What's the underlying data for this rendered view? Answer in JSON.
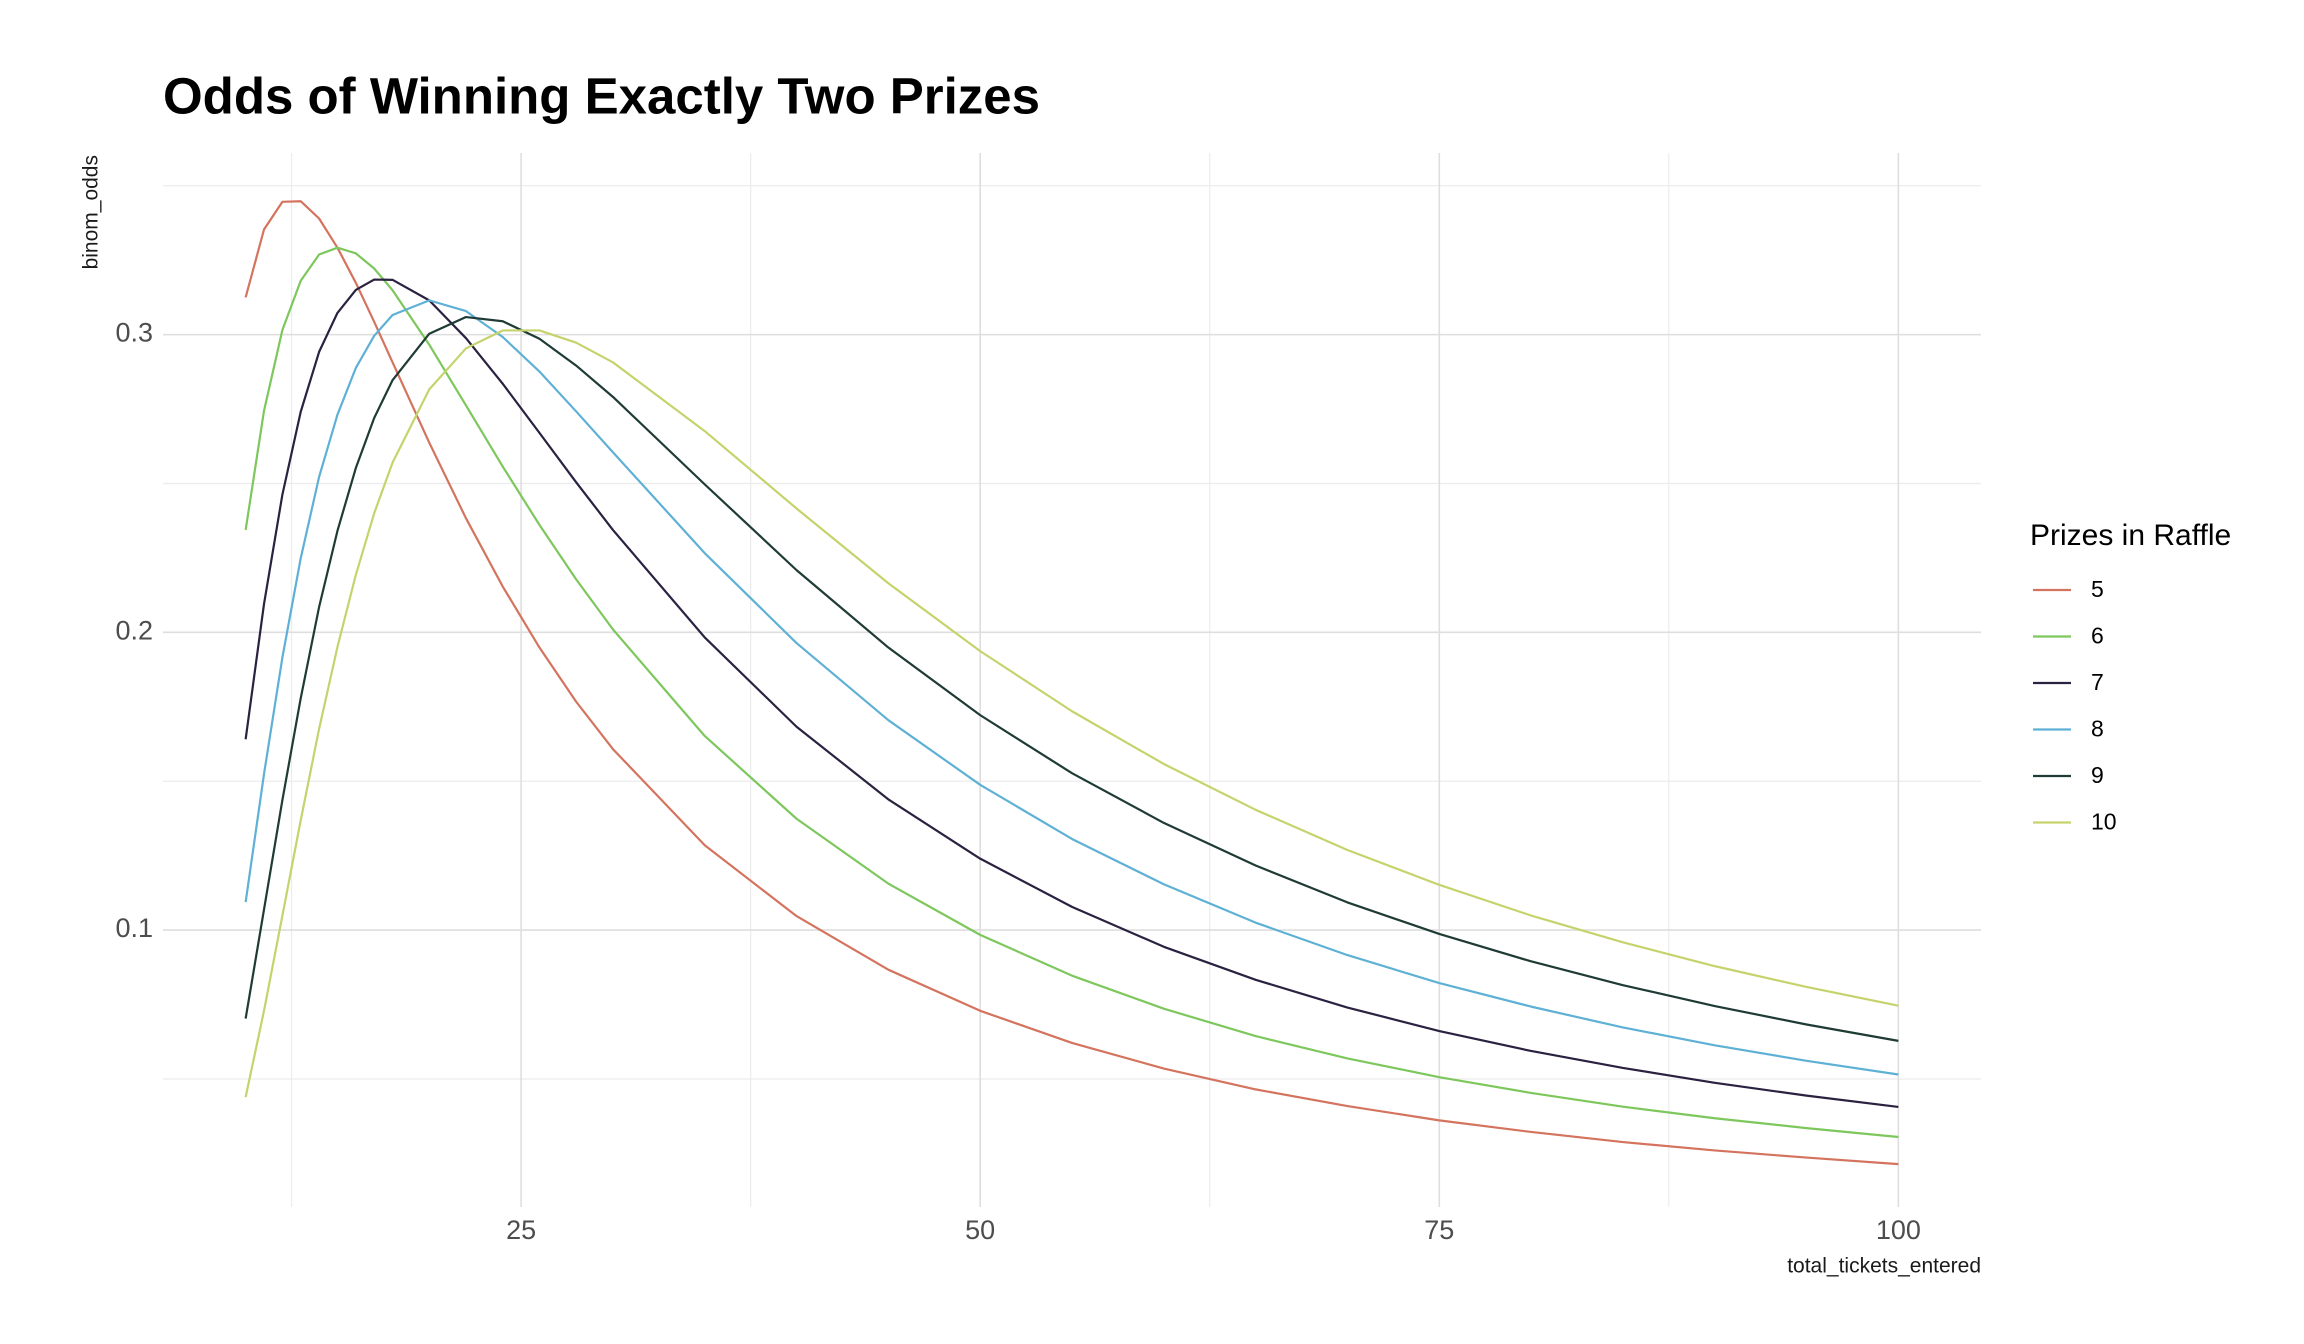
{
  "chart_data": {
    "type": "line",
    "title": "Odds of Winning Exactly Two Prizes",
    "x_label": "total_tickets_entered",
    "y_label": "binom_odds",
    "legend_title": "Prizes in Raffle",
    "legend_position": "right",
    "grid": true,
    "xlim": [
      5.5,
      104.5
    ],
    "ylim": [
      0.007,
      0.361
    ],
    "xticks": [
      25,
      50,
      75,
      100
    ],
    "yticks": [
      0.1,
      0.2,
      0.3
    ],
    "x_minor_ticks": [
      12.5,
      37.5,
      62.5,
      87.5
    ],
    "y_minor_ticks": [
      0.05,
      0.15,
      0.25,
      0.35
    ],
    "x": [
      10,
      11,
      12,
      13,
      14,
      15,
      16,
      17,
      18,
      20,
      22,
      24,
      26,
      28,
      30,
      35,
      40,
      45,
      50,
      55,
      60,
      65,
      70,
      75,
      80,
      85,
      90,
      95,
      100
    ],
    "series": [
      {
        "name": "5",
        "color": "#d4735e",
        "values": [
          0.3125,
          0.3353,
          0.3446,
          0.3448,
          0.339,
          0.3292,
          0.3174,
          0.3043,
          0.2907,
          0.2637,
          0.2383,
          0.2154,
          0.1949,
          0.1767,
          0.1608,
          0.1285,
          0.1047,
          0.0867,
          0.0729,
          0.0621,
          0.0535,
          0.0465,
          0.0409,
          0.0361,
          0.0322,
          0.0288,
          0.026,
          0.0236,
          0.0214
        ]
      },
      {
        "name": "6",
        "color": "#7dc75d",
        "values": [
          0.2344,
          0.2744,
          0.3015,
          0.3181,
          0.3269,
          0.3292,
          0.3273,
          0.3222,
          0.3149,
          0.2966,
          0.2762,
          0.2557,
          0.2361,
          0.2178,
          0.201,
          0.1652,
          0.1374,
          0.1156,
          0.0984,
          0.0847,
          0.0736,
          0.0644,
          0.0569,
          0.0506,
          0.0453,
          0.0407,
          0.0368,
          0.0335,
          0.0305
        ]
      },
      {
        "name": "7",
        "color": "#2b2140",
        "values": [
          0.1641,
          0.2095,
          0.2462,
          0.2741,
          0.2942,
          0.3073,
          0.315,
          0.3185,
          0.3184,
          0.3115,
          0.2988,
          0.2835,
          0.267,
          0.2504,
          0.2344,
          0.1983,
          0.1683,
          0.1439,
          0.124,
          0.1078,
          0.0944,
          0.0833,
          0.074,
          0.0661,
          0.0594,
          0.0537,
          0.0487,
          0.0444,
          0.0406
        ]
      },
      {
        "name": "8",
        "color": "#5eb1d5",
        "values": [
          0.1094,
          0.1524,
          0.1915,
          0.2249,
          0.2522,
          0.2731,
          0.2888,
          0.2996,
          0.3066,
          0.3115,
          0.3079,
          0.2992,
          0.2876,
          0.2742,
          0.2605,
          0.2266,
          0.1964,
          0.1705,
          0.1488,
          0.1306,
          0.1154,
          0.1025,
          0.0916,
          0.0822,
          0.0743,
          0.0673,
          0.0613,
          0.0561,
          0.0515
        ]
      },
      {
        "name": "9",
        "color": "#1f3b36",
        "values": [
          0.0703,
          0.1069,
          0.1436,
          0.1779,
          0.2085,
          0.2341,
          0.2552,
          0.272,
          0.2847,
          0.3003,
          0.3059,
          0.3045,
          0.2986,
          0.2896,
          0.2791,
          0.2497,
          0.2209,
          0.1949,
          0.1722,
          0.1527,
          0.136,
          0.1217,
          0.1093,
          0.0987,
          0.0895,
          0.0815,
          0.0745,
          0.0683,
          0.0628
        ]
      },
      {
        "name": "10",
        "color": "#c6d36c",
        "values": [
          0.0439,
          0.0729,
          0.1048,
          0.1369,
          0.1676,
          0.1951,
          0.2193,
          0.24,
          0.257,
          0.2816,
          0.2954,
          0.3014,
          0.3014,
          0.2973,
          0.2907,
          0.2676,
          0.2416,
          0.2165,
          0.1937,
          0.1735,
          0.1558,
          0.1404,
          0.1269,
          0.1152,
          0.1049,
          0.0959,
          0.0879,
          0.0809,
          0.0746
        ]
      }
    ]
  }
}
